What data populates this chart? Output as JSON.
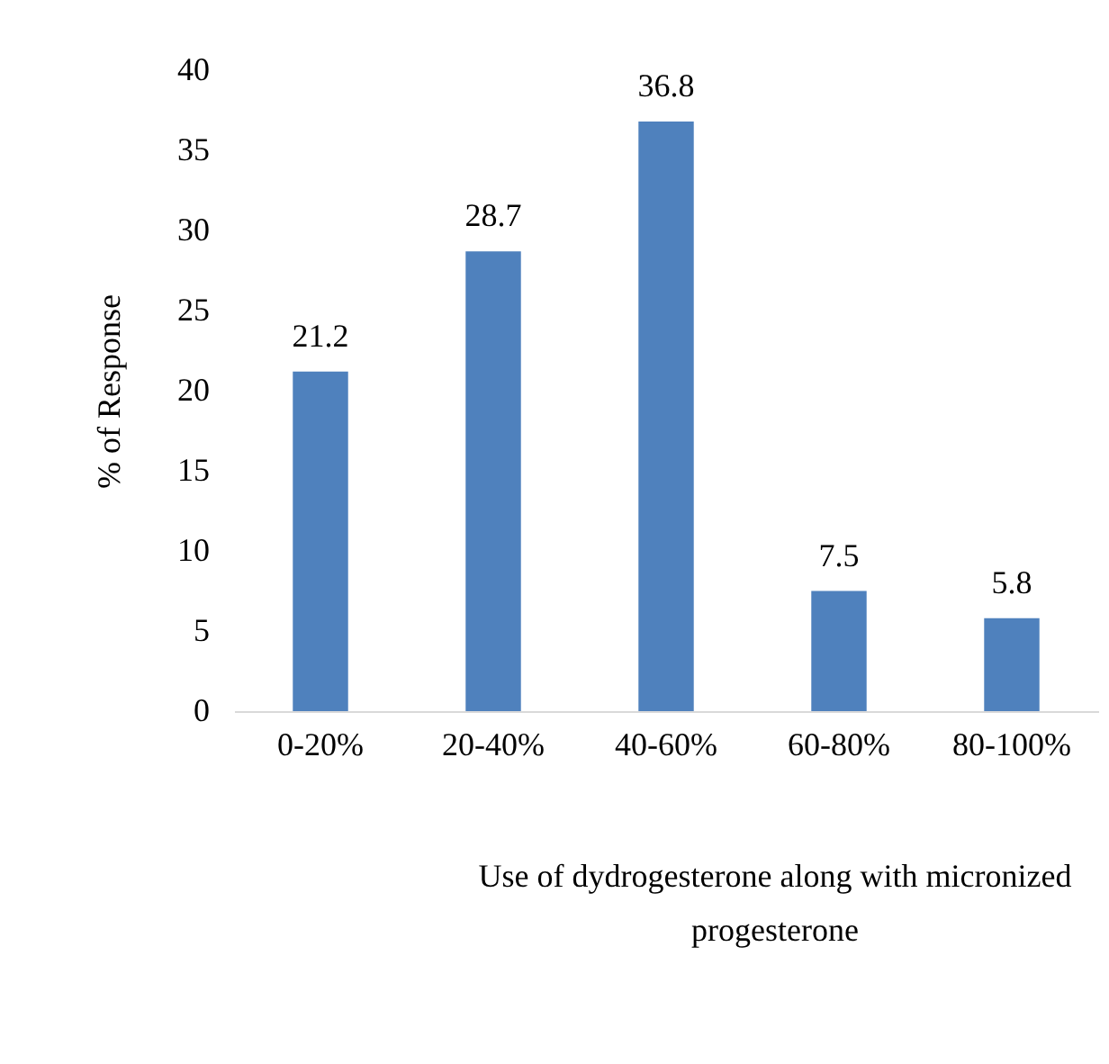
{
  "chart_data": {
    "type": "bar",
    "xlabel": "Use of dydrogesterone along with micronized progesterone",
    "ylabel": "% of Response",
    "categories": [
      "0-20%",
      "20-40%",
      "40-60%",
      "60-80%",
      "80-100%"
    ],
    "values": [
      21.2,
      28.7,
      36.8,
      7.5,
      5.8
    ],
    "color": "#4f81bd",
    "ylim": [
      0,
      40
    ],
    "yticks": [
      0,
      5,
      10,
      15,
      20,
      25,
      30,
      35,
      40
    ],
    "grid": false,
    "data_labels": true
  }
}
